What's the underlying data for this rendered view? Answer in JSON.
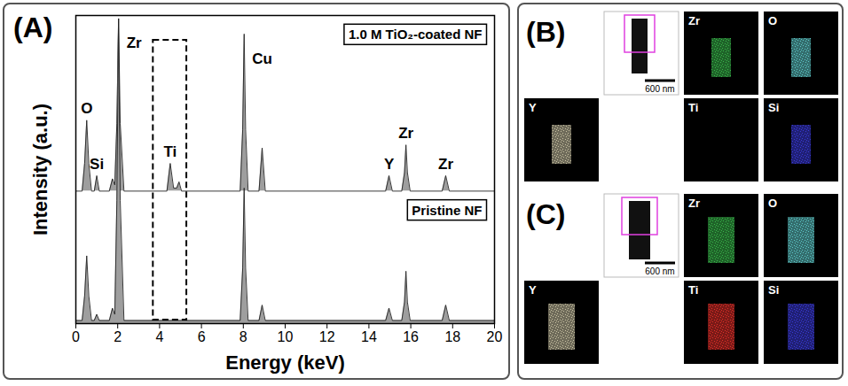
{
  "chart_data": {
    "type": "area",
    "panel_label": "(A)",
    "x_label": "Energy (keV)",
    "y_label": "Intensity (a.u.)",
    "tick_labels": "x",
    "xlim": [
      0,
      20
    ],
    "xticks": [
      0,
      2,
      4,
      6,
      8,
      10,
      12,
      14,
      16,
      18,
      20
    ],
    "ylim": [
      0,
      100
    ],
    "highlight": [
      3.7,
      5.3
    ],
    "x": [
      0,
      0.3,
      0.42,
      0.52,
      0.62,
      0.75,
      0.88,
      1.0,
      1.12,
      1.6,
      1.75,
      1.86,
      1.96,
      2.04,
      2.12,
      2.3,
      4.35,
      4.51,
      4.67,
      4.82,
      4.93,
      5.05,
      7.85,
      7.97,
      8.04,
      8.11,
      8.23,
      8.75,
      8.9,
      9.05,
      14.8,
      14.96,
      15.12,
      15.57,
      15.7,
      15.77,
      15.84,
      15.97,
      17.5,
      17.67,
      17.84,
      20
    ],
    "series": [
      {
        "name": "1.0 M TiO₂-coated NF",
        "color": "#9e9e9e",
        "baseline": 43,
        "values": [
          43,
          43,
          52,
          66,
          52,
          43,
          43,
          48,
          43,
          43,
          47,
          45,
          65,
          99,
          65,
          43,
          43,
          52,
          44,
          44,
          46,
          43,
          43,
          63,
          94,
          63,
          43,
          43,
          57,
          43,
          43,
          48,
          43,
          43,
          49,
          58,
          49,
          43,
          43,
          48,
          43,
          43
        ]
      },
      {
        "name": "Pristine NF",
        "color": "#9e9e9e",
        "baseline": 0,
        "values": [
          1,
          1,
          9,
          22,
          9,
          1,
          1,
          3,
          1,
          1,
          5,
          3,
          40,
          99,
          40,
          1,
          1,
          1,
          1,
          1,
          1,
          1,
          1,
          18,
          44,
          18,
          1,
          1,
          6,
          1,
          1,
          5,
          1,
          1,
          7,
          17,
          7,
          1,
          1,
          6,
          1,
          1
        ]
      }
    ],
    "peak_labels": [
      {
        "text": "O",
        "x": 0.52,
        "series": "1.0 M TiO₂-coated NF"
      },
      {
        "text": "Si",
        "x": 1.0,
        "series": "1.0 M TiO₂-coated NF"
      },
      {
        "text": "Zr",
        "x": 2.04,
        "series": "1.0 M TiO₂-coated NF"
      },
      {
        "text": "Ti",
        "x": 4.51,
        "series": "1.0 M TiO₂-coated NF"
      },
      {
        "text": "Cu",
        "x": 8.04,
        "series": "1.0 M TiO₂-coated NF"
      },
      {
        "text": "Y",
        "x": 14.96,
        "series": "1.0 M TiO₂-coated NF"
      },
      {
        "text": "Zr",
        "x": 15.77,
        "series": "1.0 M TiO₂-coated NF"
      },
      {
        "text": "Zr",
        "x": 17.67,
        "series": "1.0 M TiO₂-coated NF"
      }
    ]
  },
  "mapping_panels": [
    {
      "label": "(B)",
      "scale_bar": "600 nm",
      "maps": [
        {
          "element": "Zr",
          "color": "#39b54a",
          "signal": true
        },
        {
          "element": "O",
          "color": "#5ec8c8",
          "signal": true
        },
        {
          "element": "Y",
          "color": "#c9c3a3",
          "signal": true
        },
        {
          "element": "Ti",
          "color": "#e0302a",
          "signal": false
        },
        {
          "element": "Si",
          "color": "#3a3ad6",
          "signal": true
        }
      ]
    },
    {
      "label": "(C)",
      "scale_bar": "600 nm",
      "maps": [
        {
          "element": "Zr",
          "color": "#39b54a",
          "signal": true
        },
        {
          "element": "O",
          "color": "#5ec8c8",
          "signal": true
        },
        {
          "element": "Y",
          "color": "#c9c3a3",
          "signal": true
        },
        {
          "element": "Ti",
          "color": "#e0302a",
          "signal": true
        },
        {
          "element": "Si",
          "color": "#3a3ad6",
          "signal": true
        }
      ]
    }
  ]
}
